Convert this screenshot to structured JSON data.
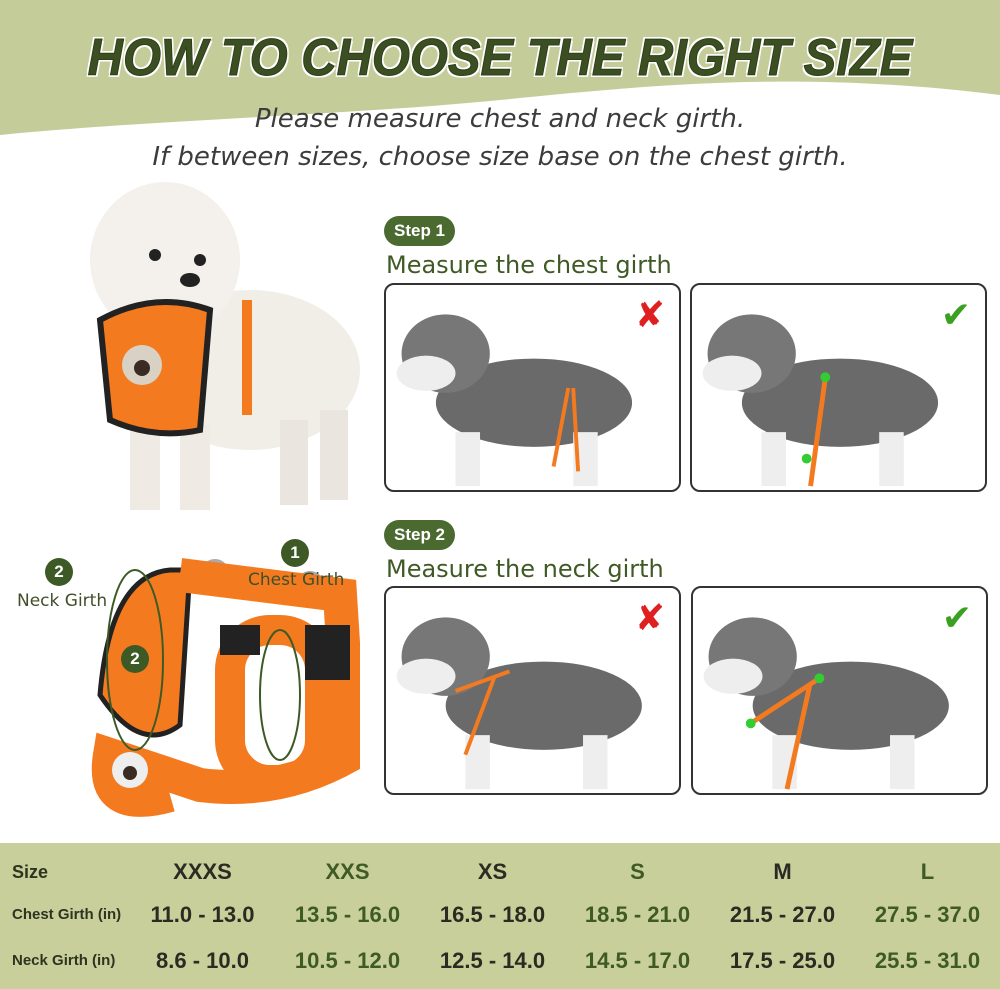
{
  "header": {
    "title": "HOW TO CHOOSE THE RIGHT SIZE",
    "subtitle_line1": "Please measure chest and neck girth.",
    "subtitle_line2": "If between sizes, choose size base on the chest girth."
  },
  "steps": [
    {
      "badge": "Step 1",
      "title": "Measure the chest girth"
    },
    {
      "badge": "Step 2",
      "title": "Measure the neck girth"
    }
  ],
  "harness_labels": {
    "neck_number": "2",
    "neck_label": "Neck Girth",
    "chest_number": "1",
    "chest_label": "Chest Girth",
    "inner_number": "2"
  },
  "marks": {
    "wrong": "✘",
    "right": "✔"
  },
  "size_table": {
    "headers": {
      "size": "Size",
      "chest": "Chest Girth (in)",
      "neck": "Neck Girth (in)"
    },
    "sizes": [
      "XXXS",
      "XXS",
      "XS",
      "S",
      "M",
      "L"
    ],
    "chest": [
      "11.0 - 13.0",
      "13.5 - 16.0",
      "16.5 - 18.0",
      "18.5 - 21.0",
      "21.5 - 27.0",
      "27.5 - 37.0"
    ],
    "neck": [
      "8.6 - 10.0",
      "10.5 - 12.0",
      "12.5 - 14.0",
      "14.5 - 17.0",
      "17.5 - 25.0",
      "25.5 - 31.0"
    ]
  },
  "colors": {
    "brand_green": "#3b4f22",
    "table_bg": "#c8cf9b",
    "harness_orange": "#f47a1f",
    "wrong": "#e02020",
    "right": "#3aa020"
  }
}
